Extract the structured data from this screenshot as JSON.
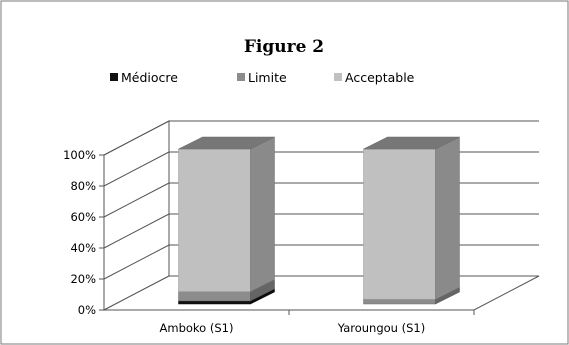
{
  "chart_data": {
    "type": "bar",
    "stacked": true,
    "percent": true,
    "three_d": true,
    "title": "Figure 2",
    "categories": [
      "Amboko (S1)",
      "Yaroungou (S1)"
    ],
    "series": [
      {
        "name": "Médiocre",
        "values": [
          2,
          0
        ],
        "color": "#111111"
      },
      {
        "name": "Limite",
        "values": [
          6,
          3
        ],
        "color": "#8c8c8c"
      },
      {
        "name": "Acceptable",
        "values": [
          92,
          97
        ],
        "color": "#c0c0c0"
      }
    ],
    "ylim": [
      0,
      100
    ],
    "y_ticks": [
      "0%",
      "20%",
      "40%",
      "60%",
      "80%",
      "100%"
    ],
    "legend_position": "top",
    "grid": true
  }
}
